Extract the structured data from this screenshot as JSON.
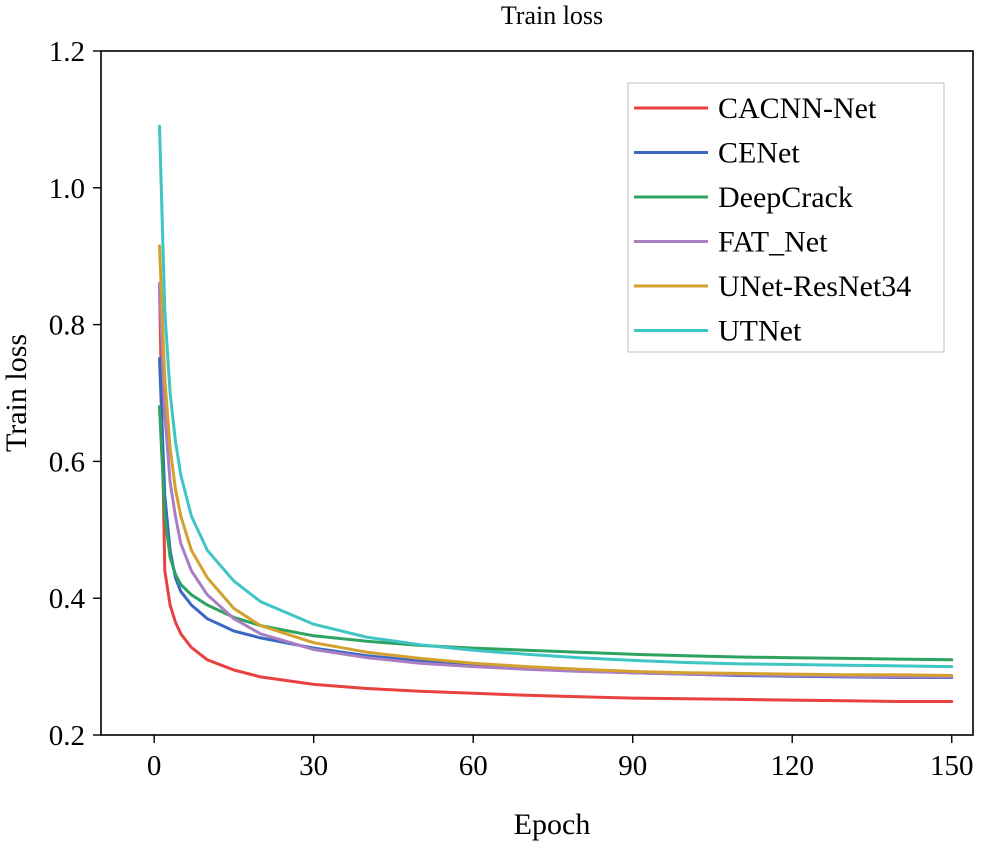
{
  "chart_data": {
    "type": "line",
    "title": "Train loss",
    "xlabel": "Epoch",
    "ylabel": "Train loss",
    "xlim": [
      -10,
      154
    ],
    "ylim": [
      0.2,
      1.2
    ],
    "xticks": [
      0,
      30,
      60,
      90,
      120,
      150
    ],
    "yticks": [
      0.2,
      0.4,
      0.6,
      0.8,
      1.0,
      1.2
    ],
    "xtick_labels": [
      "0",
      "30",
      "60",
      "90",
      "120",
      "150"
    ],
    "ytick_labels": [
      "0.2",
      "0.4",
      "0.6",
      "0.8",
      "1.0",
      "1.2"
    ],
    "grid": false,
    "legend_position": "top-right",
    "x": [
      1,
      2,
      3,
      4,
      5,
      7,
      10,
      15,
      20,
      30,
      40,
      50,
      60,
      70,
      80,
      90,
      100,
      110,
      120,
      130,
      140,
      150
    ],
    "series": [
      {
        "name": "CACNN-Net",
        "color": "#e8413f",
        "values": [
          0.86,
          0.44,
          0.39,
          0.365,
          0.348,
          0.328,
          0.31,
          0.295,
          0.285,
          0.274,
          0.268,
          0.264,
          0.261,
          0.258,
          0.256,
          0.254,
          0.253,
          0.252,
          0.251,
          0.25,
          0.249,
          0.249
        ]
      },
      {
        "name": "CENet",
        "color": "#3b68c2",
        "values": [
          0.75,
          0.55,
          0.47,
          0.43,
          0.41,
          0.39,
          0.37,
          0.352,
          0.342,
          0.327,
          0.316,
          0.308,
          0.302,
          0.298,
          0.294,
          0.291,
          0.289,
          0.287,
          0.286,
          0.285,
          0.284,
          0.284
        ]
      },
      {
        "name": "DeepCrack",
        "color": "#2ea25f",
        "values": [
          0.68,
          0.52,
          0.46,
          0.435,
          0.42,
          0.405,
          0.39,
          0.372,
          0.36,
          0.345,
          0.337,
          0.331,
          0.327,
          0.324,
          0.321,
          0.318,
          0.316,
          0.314,
          0.313,
          0.312,
          0.311,
          0.31
        ]
      },
      {
        "name": "FAT_Net",
        "color": "#a97ec3",
        "values": [
          0.86,
          0.67,
          0.57,
          0.52,
          0.48,
          0.44,
          0.405,
          0.37,
          0.348,
          0.325,
          0.313,
          0.305,
          0.3,
          0.296,
          0.293,
          0.291,
          0.289,
          0.288,
          0.287,
          0.286,
          0.285,
          0.285
        ]
      },
      {
        "name": "UNet-ResNet34",
        "color": "#d3a12e",
        "values": [
          0.915,
          0.72,
          0.62,
          0.56,
          0.52,
          0.47,
          0.43,
          0.385,
          0.36,
          0.335,
          0.321,
          0.312,
          0.305,
          0.3,
          0.296,
          0.293,
          0.291,
          0.29,
          0.289,
          0.288,
          0.288,
          0.287
        ]
      },
      {
        "name": "UTNet",
        "color": "#3ec5c4",
        "values": [
          1.09,
          0.82,
          0.7,
          0.63,
          0.58,
          0.52,
          0.47,
          0.425,
          0.395,
          0.362,
          0.343,
          0.332,
          0.324,
          0.318,
          0.313,
          0.309,
          0.306,
          0.304,
          0.303,
          0.302,
          0.301,
          0.3
        ]
      }
    ]
  }
}
